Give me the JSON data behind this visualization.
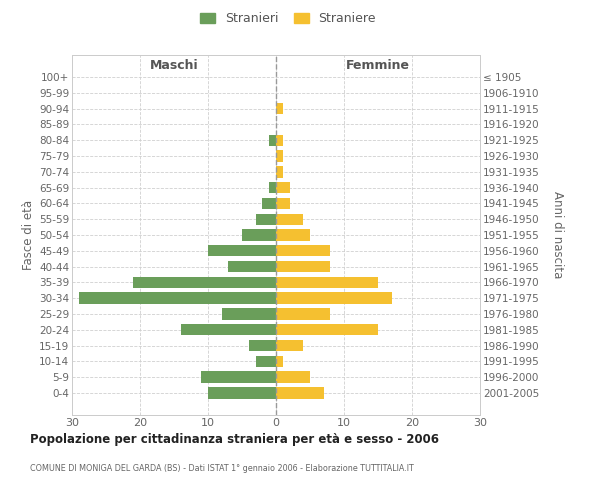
{
  "age_groups": [
    "100+",
    "95-99",
    "90-94",
    "85-89",
    "80-84",
    "75-79",
    "70-74",
    "65-69",
    "60-64",
    "55-59",
    "50-54",
    "45-49",
    "40-44",
    "35-39",
    "30-34",
    "25-29",
    "20-24",
    "15-19",
    "10-14",
    "5-9",
    "0-4"
  ],
  "birth_years": [
    "≤ 1905",
    "1906-1910",
    "1911-1915",
    "1916-1920",
    "1921-1925",
    "1926-1930",
    "1931-1935",
    "1936-1940",
    "1941-1945",
    "1946-1950",
    "1951-1955",
    "1956-1960",
    "1961-1965",
    "1966-1970",
    "1971-1975",
    "1976-1980",
    "1981-1985",
    "1986-1990",
    "1991-1995",
    "1996-2000",
    "2001-2005"
  ],
  "males": [
    0,
    0,
    0,
    0,
    1,
    0,
    0,
    1,
    2,
    3,
    5,
    10,
    7,
    21,
    29,
    8,
    14,
    4,
    3,
    11,
    10
  ],
  "females": [
    0,
    0,
    1,
    0,
    1,
    1,
    1,
    2,
    2,
    4,
    5,
    8,
    8,
    15,
    17,
    8,
    15,
    4,
    1,
    5,
    7
  ],
  "male_color": "#6a9e5a",
  "female_color": "#f5c030",
  "grid_color": "#d0d0d0",
  "title": "Popolazione per cittadinanza straniera per età e sesso - 2006",
  "subtitle": "COMUNE DI MONIGA DEL GARDA (BS) - Dati ISTAT 1° gennaio 2006 - Elaborazione TUTTITALIA.IT",
  "xlabel_left": "Maschi",
  "xlabel_right": "Femmine",
  "ylabel_left": "Fasce di età",
  "ylabel_right": "Anni di nascita",
  "legend_male": "Stranieri",
  "legend_female": "Straniere",
  "xlim": 30,
  "bar_height": 0.72
}
